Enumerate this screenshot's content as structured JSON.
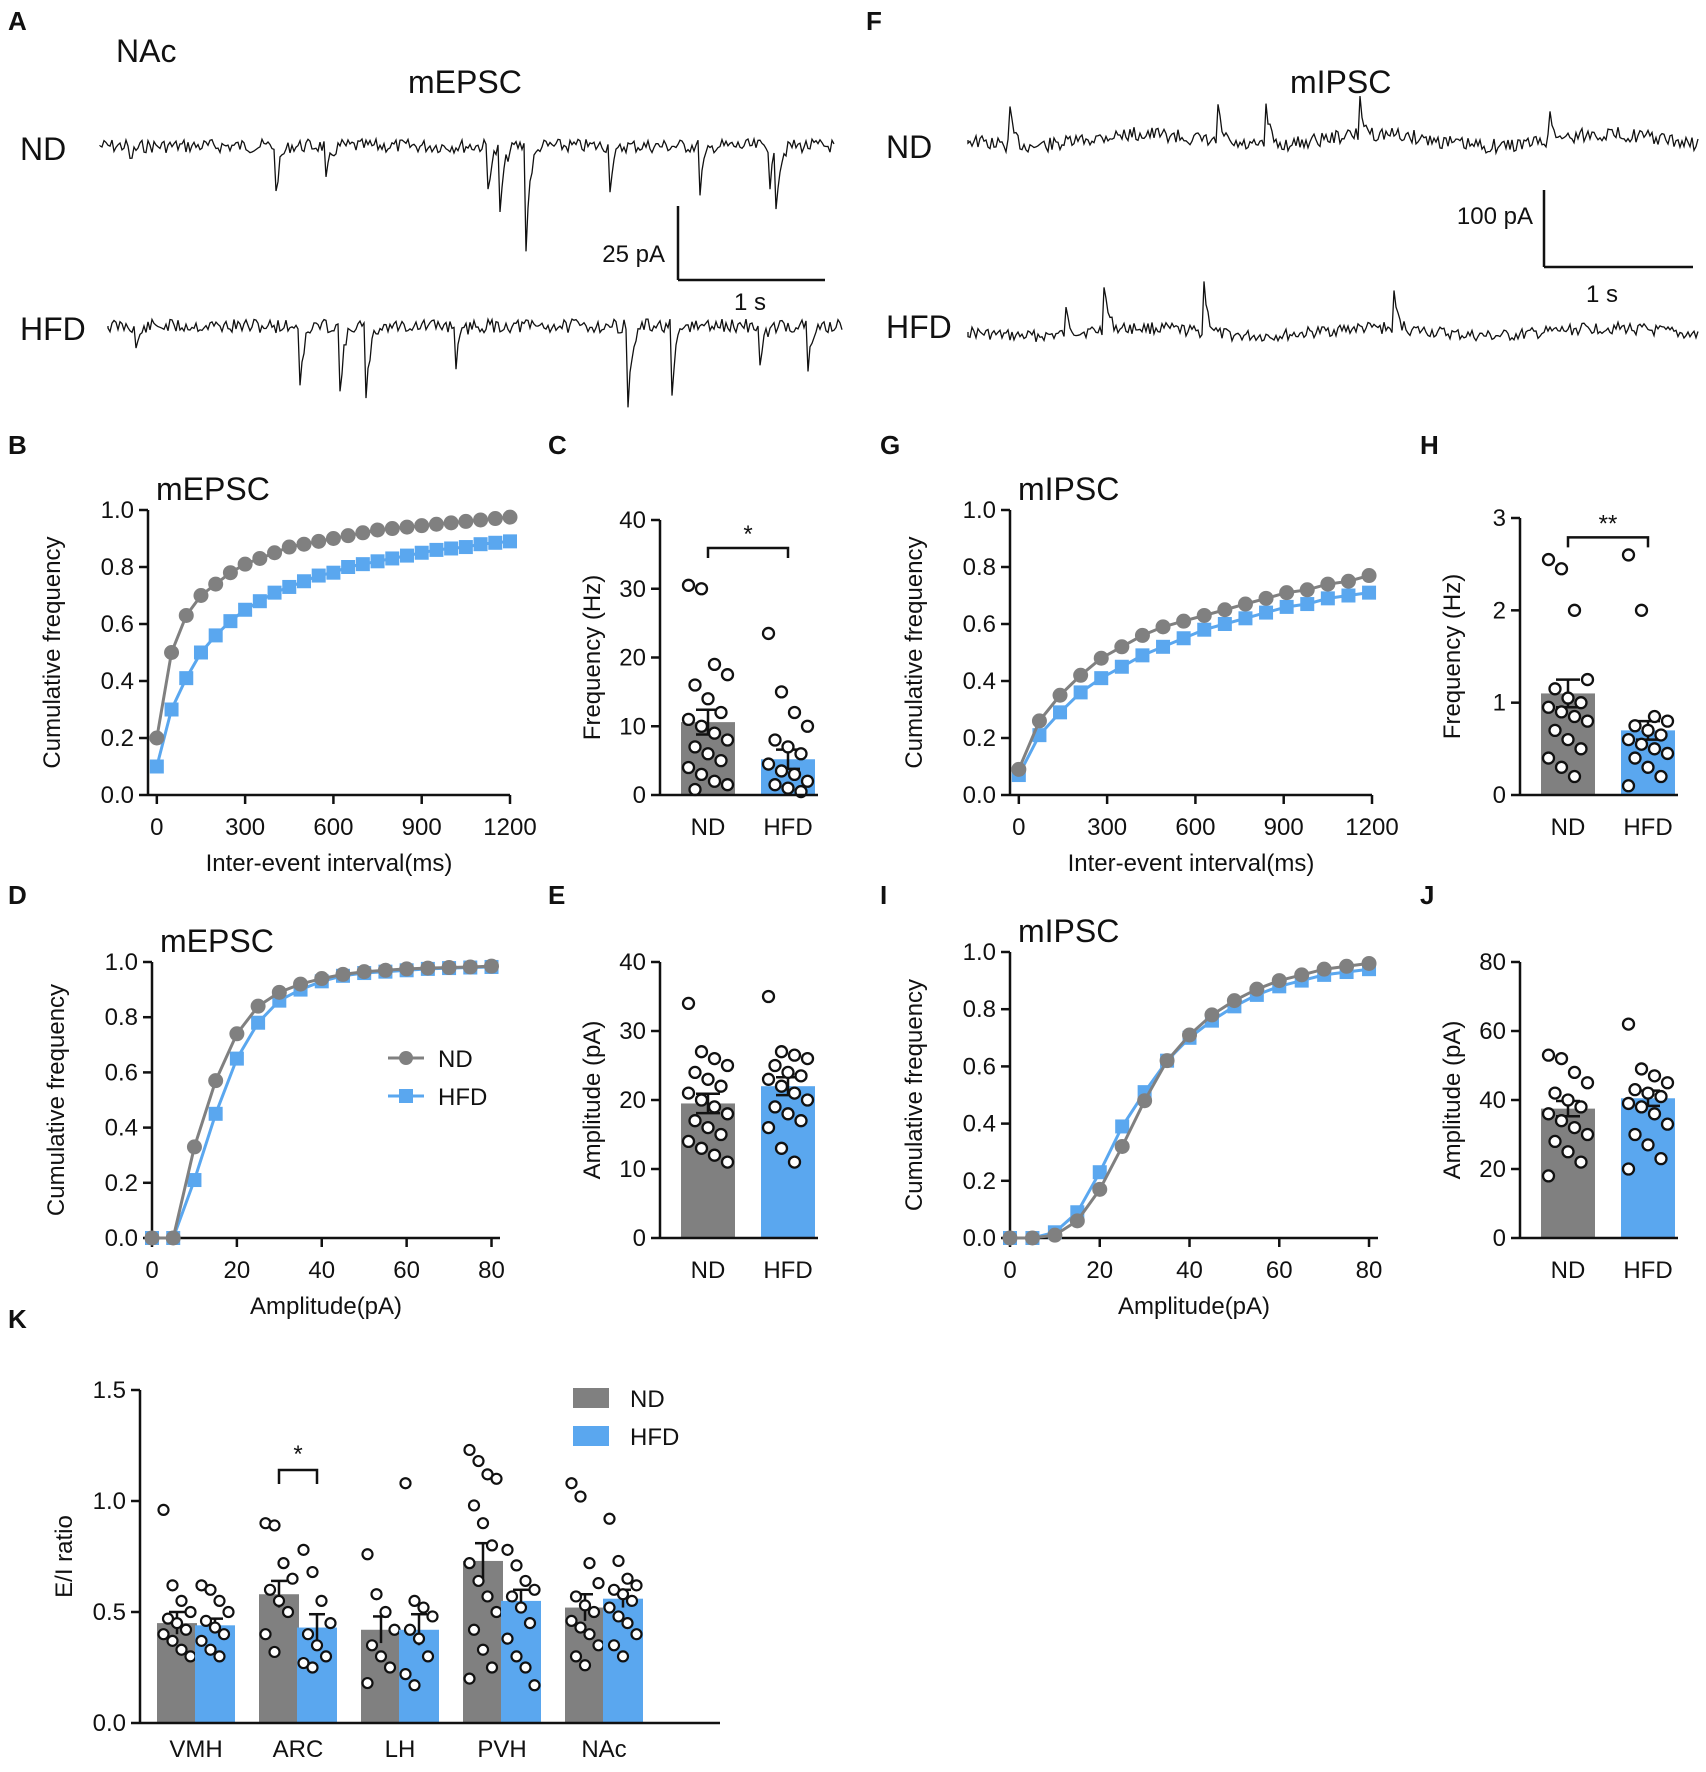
{
  "figure": {
    "colors": {
      "nd": "#808080",
      "hfd": "#5aa7ef",
      "ink": "#111111"
    },
    "panel_letters": [
      "A",
      "B",
      "C",
      "D",
      "E",
      "F",
      "G",
      "H",
      "I",
      "J",
      "K"
    ],
    "region": "NAc",
    "traces": {
      "mepsc": {
        "title": "mEPSC",
        "row_nd": "ND",
        "row_hfd": "HFD",
        "scale_amp": "25 pA",
        "scale_time": "1 s"
      },
      "mipsc": {
        "title": "mIPSC",
        "row_nd": "ND",
        "row_hfd": "HFD",
        "scale_amp": "100 pA",
        "scale_time": "1 s"
      }
    },
    "legend": {
      "nd": "ND",
      "hfd": "HFD"
    }
  },
  "chart_data": [
    {
      "id": "B",
      "type": "line",
      "title": "mEPSC",
      "xlabel": "Inter-event interval(ms)",
      "ylabel": "Cumulative frequency",
      "xlim": [
        -30,
        1200
      ],
      "ylim": [
        0,
        1.0
      ],
      "xticks": [
        0,
        300,
        600,
        900,
        1200
      ],
      "yticks": [
        0.0,
        0.2,
        0.4,
        0.6,
        0.8,
        1.0
      ],
      "x": [
        0,
        50,
        100,
        150,
        200,
        250,
        300,
        350,
        400,
        450,
        500,
        550,
        600,
        650,
        700,
        750,
        800,
        850,
        900,
        950,
        1000,
        1050,
        1100,
        1150,
        1200
      ],
      "series": [
        {
          "name": "ND",
          "values": [
            0.2,
            0.5,
            0.63,
            0.7,
            0.74,
            0.78,
            0.81,
            0.83,
            0.85,
            0.87,
            0.88,
            0.89,
            0.9,
            0.91,
            0.92,
            0.93,
            0.935,
            0.94,
            0.945,
            0.95,
            0.955,
            0.96,
            0.965,
            0.97,
            0.975
          ]
        },
        {
          "name": "HFD",
          "values": [
            0.1,
            0.3,
            0.41,
            0.5,
            0.56,
            0.61,
            0.65,
            0.68,
            0.71,
            0.73,
            0.75,
            0.77,
            0.78,
            0.8,
            0.81,
            0.82,
            0.83,
            0.84,
            0.85,
            0.86,
            0.865,
            0.87,
            0.88,
            0.885,
            0.89
          ]
        }
      ]
    },
    {
      "id": "C",
      "type": "bar",
      "categories": [
        "ND",
        "HFD"
      ],
      "values": [
        10.6,
        5.2
      ],
      "errors": [
        1.8,
        1.4
      ],
      "ylabel": "Frequency (Hz)",
      "ylim": [
        0,
        40
      ],
      "yticks": [
        0,
        10,
        20,
        30,
        40
      ],
      "points": [
        [
          30.5,
          30,
          19,
          17.5,
          16,
          14,
          12,
          11,
          10,
          9,
          8,
          7,
          6,
          5,
          4,
          3,
          2,
          1.5,
          0.8
        ],
        [
          23.5,
          15,
          12,
          10,
          8,
          7,
          6,
          4.5,
          3.5,
          3,
          2,
          1.5,
          1,
          0.5
        ]
      ],
      "significance": "*"
    },
    {
      "id": "D",
      "type": "line",
      "title": "mEPSC",
      "xlabel": "Amplitude(pA)",
      "ylabel": "Cumulative frequency",
      "xlim": [
        0,
        82
      ],
      "ylim": [
        0,
        1.0
      ],
      "xticks": [
        0,
        20,
        40,
        60,
        80
      ],
      "yticks": [
        0.0,
        0.2,
        0.4,
        0.6,
        0.8,
        1.0
      ],
      "x": [
        0,
        5,
        10,
        15,
        20,
        25,
        30,
        35,
        40,
        45,
        50,
        55,
        60,
        65,
        70,
        75,
        80
      ],
      "series": [
        {
          "name": "ND",
          "values": [
            0,
            0,
            0.33,
            0.57,
            0.74,
            0.84,
            0.89,
            0.92,
            0.94,
            0.955,
            0.965,
            0.97,
            0.975,
            0.978,
            0.98,
            0.982,
            0.985
          ]
        },
        {
          "name": "HFD",
          "values": [
            0,
            0,
            0.21,
            0.45,
            0.65,
            0.78,
            0.86,
            0.9,
            0.93,
            0.95,
            0.96,
            0.965,
            0.97,
            0.975,
            0.978,
            0.98,
            0.982
          ]
        }
      ]
    },
    {
      "id": "E",
      "type": "bar",
      "categories": [
        "ND",
        "HFD"
      ],
      "values": [
        19.5,
        22.0
      ],
      "errors": [
        1.4,
        1.3
      ],
      "ylabel": "Amplitude (pA)",
      "ylim": [
        0,
        40
      ],
      "yticks": [
        0,
        10,
        20,
        30,
        40
      ],
      "points": [
        [
          34,
          27,
          26,
          25,
          24,
          23,
          22,
          21,
          20,
          19,
          18,
          17,
          16,
          15,
          14,
          13,
          12,
          11
        ],
        [
          35,
          27,
          26.5,
          26,
          25,
          24,
          23.5,
          23,
          22,
          21,
          20,
          19,
          18,
          17,
          16,
          13,
          11
        ]
      ],
      "significance": ""
    },
    {
      "id": "G",
      "type": "line",
      "title": "mIPSC",
      "xlabel": "Inter-event interval(ms)",
      "ylabel": "Cumulative frequency",
      "xlim": [
        -30,
        1200
      ],
      "ylim": [
        0,
        1.0
      ],
      "xticks": [
        0,
        300,
        600,
        900,
        1200
      ],
      "yticks": [
        0.0,
        0.2,
        0.4,
        0.6,
        0.8,
        1.0
      ],
      "x": [
        0,
        70,
        140,
        210,
        280,
        350,
        420,
        490,
        560,
        630,
        700,
        770,
        840,
        910,
        980,
        1050,
        1120,
        1190
      ],
      "series": [
        {
          "name": "ND",
          "values": [
            0.09,
            0.26,
            0.35,
            0.42,
            0.48,
            0.52,
            0.56,
            0.59,
            0.61,
            0.63,
            0.65,
            0.67,
            0.69,
            0.71,
            0.72,
            0.74,
            0.75,
            0.77
          ]
        },
        {
          "name": "HFD",
          "values": [
            0.07,
            0.21,
            0.29,
            0.36,
            0.41,
            0.45,
            0.49,
            0.52,
            0.55,
            0.58,
            0.6,
            0.62,
            0.64,
            0.66,
            0.67,
            0.69,
            0.7,
            0.71
          ]
        }
      ]
    },
    {
      "id": "H",
      "type": "bar",
      "categories": [
        "ND",
        "HFD"
      ],
      "values": [
        1.1,
        0.7
      ],
      "errors": [
        0.15,
        0.1
      ],
      "ylabel": "Frequency (Hz)",
      "ylim": [
        0,
        3
      ],
      "yticks": [
        0,
        1,
        2,
        3
      ],
      "points": [
        [
          2.55,
          2.45,
          2.0,
          1.25,
          1.15,
          1.05,
          1.0,
          0.95,
          0.9,
          0.85,
          0.8,
          0.7,
          0.6,
          0.5,
          0.4,
          0.3,
          0.2
        ],
        [
          2.6,
          2.0,
          0.85,
          0.8,
          0.75,
          0.7,
          0.65,
          0.6,
          0.55,
          0.5,
          0.45,
          0.4,
          0.3,
          0.2,
          0.1
        ]
      ],
      "significance": "**"
    },
    {
      "id": "I",
      "type": "line",
      "title": "mIPSC",
      "xlabel": "Amplitude(pA)",
      "ylabel": "Cumulative frequency",
      "xlim": [
        0,
        82
      ],
      "ylim": [
        0,
        1.0
      ],
      "xticks": [
        0,
        20,
        40,
        60,
        80
      ],
      "yticks": [
        0.0,
        0.2,
        0.4,
        0.6,
        0.8,
        1.0
      ],
      "x": [
        0,
        5,
        10,
        15,
        20,
        25,
        30,
        35,
        40,
        45,
        50,
        55,
        60,
        65,
        70,
        75,
        80
      ],
      "series": [
        {
          "name": "ND",
          "values": [
            0,
            0,
            0.01,
            0.06,
            0.17,
            0.32,
            0.48,
            0.62,
            0.71,
            0.78,
            0.83,
            0.87,
            0.9,
            0.92,
            0.94,
            0.95,
            0.96
          ]
        },
        {
          "name": "HFD",
          "values": [
            0,
            0,
            0.02,
            0.09,
            0.23,
            0.39,
            0.51,
            0.62,
            0.7,
            0.76,
            0.81,
            0.85,
            0.88,
            0.9,
            0.92,
            0.93,
            0.94
          ]
        }
      ]
    },
    {
      "id": "J",
      "type": "bar",
      "categories": [
        "ND",
        "HFD"
      ],
      "values": [
        37.5,
        40.5
      ],
      "errors": [
        2.2,
        2.2
      ],
      "ylabel": "Amplitude (pA)",
      "ylim": [
        0,
        80
      ],
      "yticks": [
        0,
        20,
        40,
        60,
        80
      ],
      "points": [
        [
          53,
          52,
          48,
          45,
          42,
          40,
          38,
          36,
          34,
          32,
          30,
          28,
          25,
          22,
          18
        ],
        [
          62,
          49,
          47,
          45,
          43,
          42,
          41,
          39,
          38,
          36,
          33,
          30,
          27,
          23,
          20
        ]
      ],
      "significance": ""
    },
    {
      "id": "K",
      "type": "bar",
      "categories": [
        "VMH",
        "ARC",
        "LH",
        "PVH",
        "NAc"
      ],
      "series": [
        {
          "name": "ND",
          "values": [
            0.45,
            0.58,
            0.42,
            0.73,
            0.52
          ],
          "errors": [
            0.05,
            0.06,
            0.06,
            0.08,
            0.06
          ]
        },
        {
          "name": "HFD",
          "values": [
            0.44,
            0.43,
            0.42,
            0.55,
            0.56
          ],
          "errors": [
            0.03,
            0.06,
            0.07,
            0.05,
            0.04
          ]
        }
      ],
      "points": [
        [
          [
            0.96,
            0.62,
            0.55,
            0.5,
            0.47,
            0.45,
            0.42,
            0.4,
            0.37,
            0.33,
            0.3
          ],
          [
            0.62,
            0.6,
            0.55,
            0.5,
            0.46,
            0.43,
            0.4,
            0.37,
            0.33,
            0.3
          ]
        ],
        [
          [
            0.9,
            0.89,
            0.72,
            0.65,
            0.6,
            0.55,
            0.5,
            0.4,
            0.32
          ],
          [
            0.78,
            0.68,
            0.55,
            0.45,
            0.4,
            0.35,
            0.3,
            0.27,
            0.25
          ]
        ],
        [
          [
            0.76,
            0.58,
            0.5,
            0.42,
            0.35,
            0.3,
            0.25,
            0.18
          ],
          [
            1.08,
            0.55,
            0.52,
            0.48,
            0.42,
            0.38,
            0.3,
            0.22,
            0.17
          ]
        ],
        [
          [
            1.23,
            1.18,
            1.12,
            1.1,
            0.98,
            0.9,
            0.8,
            0.72,
            0.64,
            0.57,
            0.5,
            0.42,
            0.33,
            0.25,
            0.2
          ],
          [
            0.78,
            0.71,
            0.64,
            0.6,
            0.57,
            0.52,
            0.45,
            0.38,
            0.3,
            0.25,
            0.17
          ]
        ],
        [
          [
            1.08,
            1.02,
            0.72,
            0.63,
            0.57,
            0.53,
            0.5,
            0.46,
            0.43,
            0.4,
            0.35,
            0.3,
            0.26
          ],
          [
            0.92,
            0.73,
            0.65,
            0.62,
            0.6,
            0.58,
            0.55,
            0.52,
            0.48,
            0.45,
            0.4,
            0.35,
            0.3
          ]
        ]
      ],
      "ylabel": "E/I ratio",
      "ylim": [
        0,
        1.5
      ],
      "yticks": [
        0.0,
        0.5,
        1.0,
        1.5
      ],
      "significance": [
        {
          "group": "ARC",
          "label": "*"
        }
      ]
    }
  ]
}
